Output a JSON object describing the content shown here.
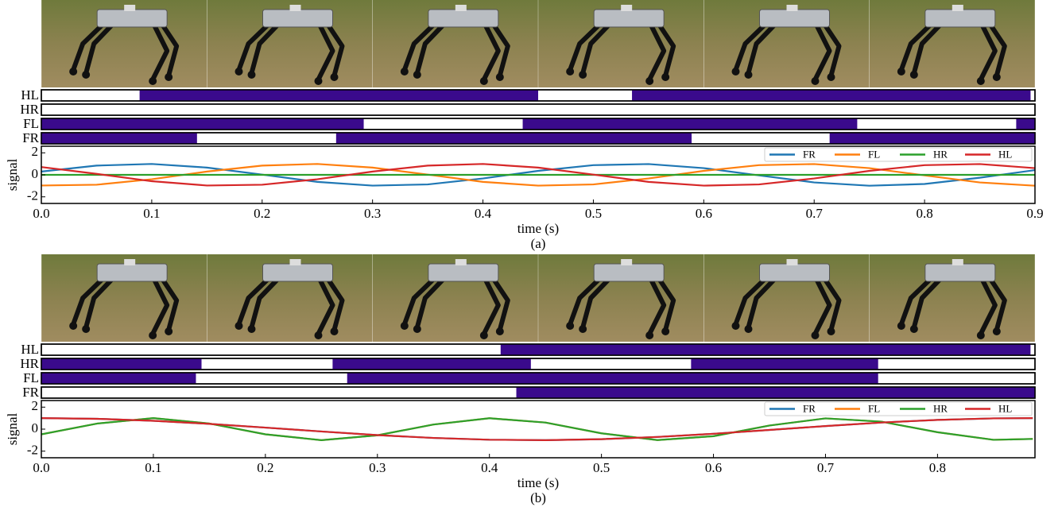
{
  "chart_data": [
    {
      "type": "line",
      "caption": "(a)",
      "x_label": "time (s)",
      "y_label": "signal",
      "xlim": [
        0,
        0.9
      ],
      "ylim": [
        -2.6,
        2.6
      ],
      "xticks": [
        {
          "value": 0,
          "label": "0.0"
        },
        0.1,
        0.2,
        0.3,
        0.4,
        0.5,
        0.6,
        0.7,
        0.8,
        0.9
      ],
      "yticks": [
        -2,
        0,
        2
      ],
      "legend": "upper right",
      "stance_color": "#3a0a8c",
      "gait": [
        {
          "name": "HL",
          "stance": [
            [
              0.089,
              0.45
            ],
            [
              0.535,
              0.896
            ]
          ]
        },
        {
          "name": "HR",
          "stance": []
        },
        {
          "name": "FL",
          "stance": [
            [
              0,
              0.292
            ],
            [
              0.436,
              0.739
            ],
            [
              0.883,
              0.9
            ]
          ]
        },
        {
          "name": "FR",
          "stance": [
            [
              0,
              0.141
            ],
            [
              0.267,
              0.589
            ],
            [
              0.714,
              0.9
            ]
          ]
        }
      ],
      "x": [
        0,
        0.05,
        0.1,
        0.15,
        0.2,
        0.25,
        0.3,
        0.35,
        0.4,
        0.45,
        0.5,
        0.55,
        0.6,
        0.65,
        0.7,
        0.75,
        0.8,
        0.85,
        0.9
      ],
      "series": [
        {
          "name": "FR",
          "color": "#1f77b4",
          "values": [
            0.3,
            0.84,
            0.99,
            0.66,
            0.02,
            -0.64,
            -0.98,
            -0.87,
            -0.33,
            0.36,
            0.88,
            0.98,
            0.61,
            -0.05,
            -0.69,
            -0.99,
            -0.83,
            -0.26,
            0.43
          ]
        },
        {
          "name": "FL",
          "color": "#ff7f0e",
          "values": [
            -0.97,
            -0.9,
            -0.4,
            0.3,
            0.84,
            0.99,
            0.66,
            0.02,
            -0.64,
            -0.98,
            -0.87,
            -0.33,
            0.36,
            0.88,
            0.98,
            0.61,
            -0.05,
            -0.69,
            -0.99
          ]
        },
        {
          "name": "HR",
          "color": "#2ca02c",
          "values": [
            0,
            0,
            0,
            0,
            0,
            0,
            0,
            0,
            0,
            0,
            0,
            0,
            0,
            0,
            0,
            0,
            0,
            0,
            0
          ]
        },
        {
          "name": "HL",
          "color": "#d62728",
          "values": [
            0.71,
            0.09,
            -0.58,
            -0.97,
            -0.9,
            -0.4,
            0.3,
            0.84,
            0.99,
            0.66,
            0.02,
            -0.64,
            -0.98,
            -0.87,
            -0.33,
            0.36,
            0.88,
            0.98,
            0.61
          ]
        }
      ]
    },
    {
      "type": "line",
      "caption": "(b)",
      "x_label": "time (s)",
      "y_label": "signal",
      "xlim": [
        0,
        0.887
      ],
      "ylim": [
        -2.6,
        2.6
      ],
      "xticks": [
        {
          "value": 0,
          "label": "0.0"
        },
        0.1,
        0.2,
        0.3,
        0.4,
        0.5,
        0.6,
        0.7,
        0.8
      ],
      "yticks": [
        -2,
        0,
        2
      ],
      "legend": "upper right",
      "stance_color": "#3a0a8c",
      "gait": [
        {
          "name": "HL",
          "stance": [
            [
              0.41,
              0.883
            ]
          ]
        },
        {
          "name": "HR",
          "stance": [
            [
              0,
              0.143
            ],
            [
              0.26,
              0.437
            ],
            [
              0.58,
              0.747
            ]
          ]
        },
        {
          "name": "FL",
          "stance": [
            [
              0,
              0.138
            ],
            [
              0.273,
              0.747
            ]
          ]
        },
        {
          "name": "FR",
          "stance": [
            [
              0.424,
              0.887
            ]
          ]
        }
      ],
      "x": [
        0,
        0.05,
        0.1,
        0.15,
        0.2,
        0.25,
        0.3,
        0.35,
        0.4,
        0.45,
        0.5,
        0.55,
        0.6,
        0.65,
        0.7,
        0.75,
        0.8,
        0.85,
        0.885
      ],
      "series": [
        {
          "name": "FR",
          "color": "#1f77b4",
          "values": [
            1.0,
            0.94,
            0.76,
            0.48,
            0.14,
            -0.21,
            -0.54,
            -0.8,
            -0.96,
            -1.0,
            -0.91,
            -0.71,
            -0.42,
            -0.07,
            0.28,
            0.6,
            0.84,
            0.98,
            1.0
          ]
        },
        {
          "name": "FL",
          "color": "#ff7f0e",
          "values": [
            -0.47,
            0.51,
            1.0,
            0.51,
            -0.47,
            -1.0,
            -0.56,
            0.42,
            0.99,
            0.6,
            -0.38,
            -0.99,
            -0.64,
            0.33,
            0.98,
            0.68,
            -0.28,
            -0.97,
            -0.89
          ]
        },
        {
          "name": "HR",
          "color": "#2ca02c",
          "values": [
            -0.47,
            0.51,
            1.0,
            0.51,
            -0.47,
            -1.0,
            -0.56,
            0.42,
            0.99,
            0.6,
            -0.38,
            -0.99,
            -0.64,
            0.33,
            0.98,
            0.68,
            -0.28,
            -0.97,
            -0.89
          ]
        },
        {
          "name": "HL",
          "color": "#d62728",
          "values": [
            1.0,
            0.94,
            0.76,
            0.48,
            0.14,
            -0.21,
            -0.54,
            -0.8,
            -0.96,
            -1.0,
            -0.91,
            -0.71,
            -0.42,
            -0.07,
            0.28,
            0.6,
            0.84,
            0.98,
            1.0
          ]
        }
      ]
    }
  ]
}
